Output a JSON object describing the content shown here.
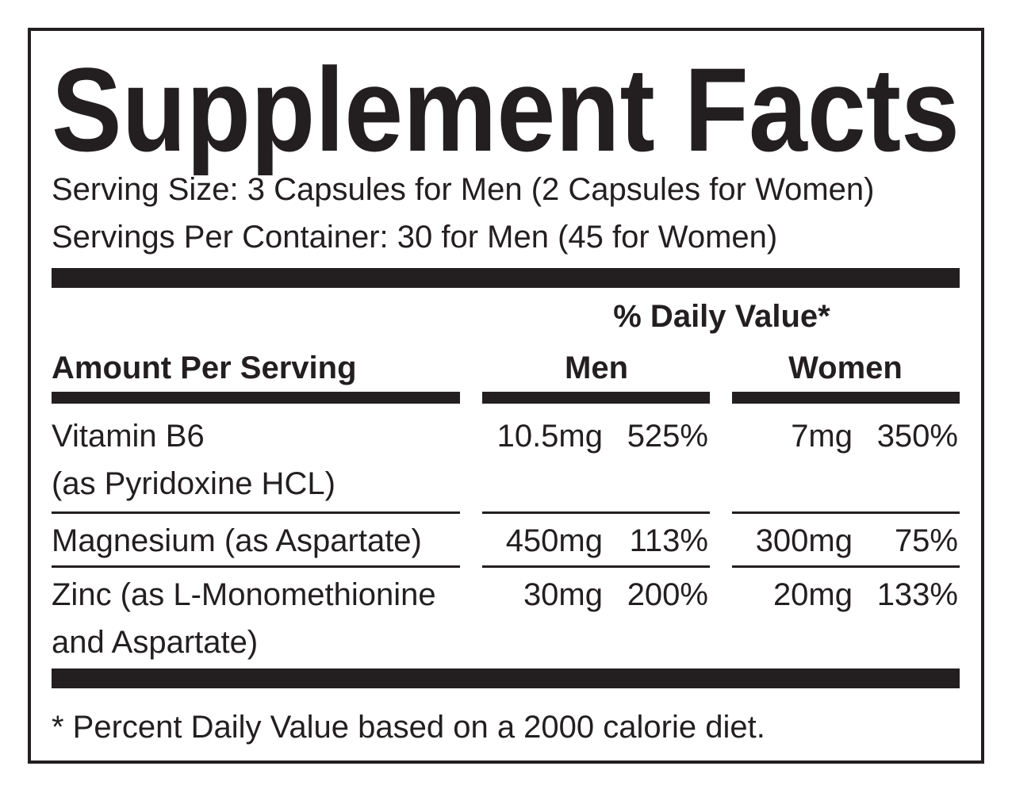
{
  "title": "Supplement Facts",
  "serving": [
    "Serving Size: 3 Capsules for Men (2 Capsules for Women)",
    "Servings Per Container: 30 for Men (45 for Women)"
  ],
  "table": {
    "header": {
      "daily_value": "% Daily Value*",
      "amount": "Amount Per Serving",
      "men": "Men",
      "women": "Women"
    },
    "rows": [
      {
        "name": [
          "Vitamin B6",
          "(as Pyridoxine HCL)"
        ],
        "men": [
          "10.5mg",
          "525%"
        ],
        "women": [
          "7mg",
          "350%"
        ]
      },
      {
        "name": [
          "Magnesium (as Aspartate)"
        ],
        "men": [
          "450mg",
          "113%"
        ],
        "women": [
          "300mg",
          "75%"
        ]
      },
      {
        "name": [
          "Zinc (as L-Monomethionine",
          "and Aspartate)"
        ],
        "men": [
          "30mg",
          "200%"
        ],
        "women": [
          "20mg",
          "133%"
        ]
      }
    ]
  },
  "footnote": "* Percent Daily Value based on a 2000 calorie diet."
}
